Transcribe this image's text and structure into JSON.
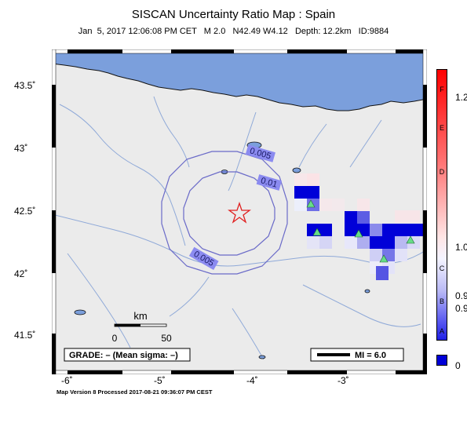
{
  "title": "SISCAN Uncertainty Ratio Map : Spain",
  "subtitle": "Jan  5, 2017 12:06:08 PM CET   M 2.0   N42.49 W4.12   Depth: 12.2km   ID:9884",
  "lat_labels": [
    "43.5˚",
    "43˚",
    "42.5˚",
    "42˚",
    "41.5˚"
  ],
  "lon_labels": [
    "-6˚",
    "-5˚",
    "-4˚",
    "-3˚"
  ],
  "contour_labels": {
    "outer_top": "0.005",
    "inner": "0.01",
    "outer_bottom": "0.005"
  },
  "scale": {
    "unit": "km",
    "start": "0",
    "end": "50"
  },
  "grade_text": "GRADE: – (Mean sigma: –)",
  "mi_legend": "MI = 6.0",
  "footer": "Map Version 8 Processed 2017-08-21 09:36:07 PM CEST",
  "colorbar": {
    "letters": [
      "F",
      "E",
      "D",
      "C",
      "B",
      "A"
    ],
    "values": [
      "1.2",
      "1.0",
      "0.9",
      "0.9",
      "0"
    ]
  },
  "colors": {
    "sea": "#7b9fdc",
    "land": "#ebebeb",
    "rivers": "#8fa9d8",
    "epicenter": "#e02020",
    "station": "#66dd88",
    "cell_dark": "#0000d8",
    "contour": "#6a6ac8"
  }
}
